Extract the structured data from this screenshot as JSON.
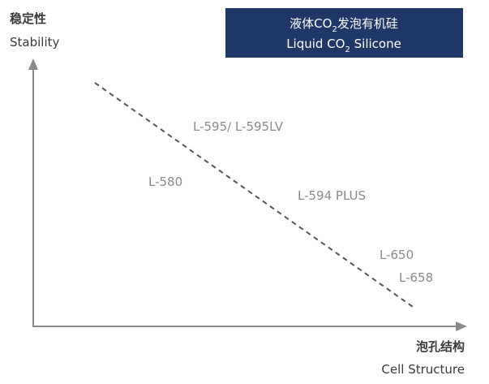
{
  "chart_data": {
    "type": "diagram",
    "title": "",
    "y_axis": {
      "label_cn": "稳定性",
      "label_en": "Stability"
    },
    "x_axis": {
      "label_cn": "泡孔结构",
      "label_en": "Cell Structure"
    },
    "trend_line": {
      "style": "dashed",
      "direction": "decreasing"
    },
    "badge": {
      "line1_pre": "液体CO",
      "line1_sub": "2",
      "line1_post": "发泡有机硅",
      "line2_pre": "Liquid CO",
      "line2_sub": "2",
      "line2_post": " Silicone",
      "bg_color": "#1f3868"
    },
    "products": [
      {
        "name": "L-595/ L-595LV"
      },
      {
        "name": "L-580"
      },
      {
        "name": "L-594 PLUS"
      },
      {
        "name": "L-650"
      },
      {
        "name": "L-658"
      }
    ],
    "axis_color": "#8a8a8a",
    "line_color": "#555555",
    "label_color": "#8a8a8a"
  }
}
